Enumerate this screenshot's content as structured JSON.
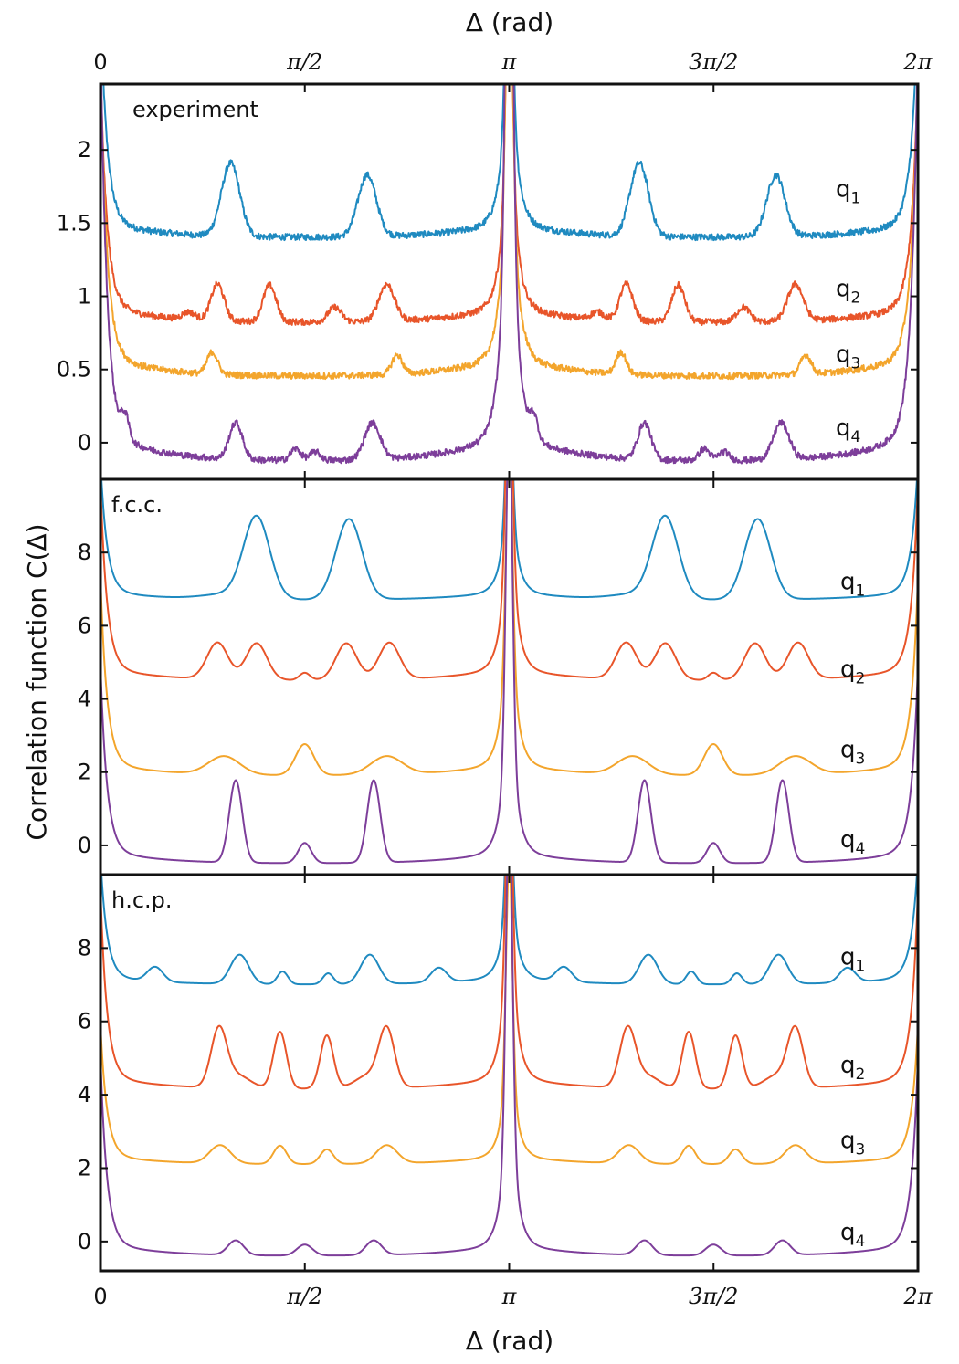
{
  "chart_data": {
    "type": "line",
    "ylabel": "Correlation function C(Δ)",
    "xlabel": "Δ (rad)",
    "xlabel_top": "Δ (rad)",
    "x_ticks": [
      0,
      1.5708,
      3.1416,
      4.7124,
      6.2832
    ],
    "x_tick_labels": [
      "0",
      "π/2",
      "π",
      "3π/2",
      "2π"
    ],
    "xlim": [
      0,
      6.2832
    ],
    "grid": false,
    "colors": {
      "q1": "#1f8ac0",
      "q2": "#e8552a",
      "q3": "#f3a52c",
      "q4": "#7d3e9a"
    },
    "panels": [
      {
        "label": "experiment",
        "ylim": [
          -0.25,
          2.45
        ],
        "y_ticks": [
          0,
          0.5,
          1,
          1.5,
          2
        ],
        "y_tick_labels": [
          "0",
          "0.5",
          "1",
          "1.5",
          "2"
        ],
        "noise": 0.022,
        "series": [
          {
            "name": "q1",
            "baseline": 1.4,
            "wall": 1.5,
            "center": 1.1,
            "peaks": [
              [
                1.0,
                0.5,
                0.07
              ],
              [
                2.05,
                0.42,
                0.07
              ]
            ]
          },
          {
            "name": "q2",
            "baseline": 0.82,
            "wall": 1.6,
            "center": 1.05,
            "peaks": [
              [
                0.9,
                0.25,
                0.05
              ],
              [
                1.3,
                0.25,
                0.05
              ],
              [
                1.8,
                0.1,
                0.05
              ],
              [
                2.2,
                0.25,
                0.06
              ],
              [
                0.68,
                0.05,
                0.05
              ]
            ]
          },
          {
            "name": "q3",
            "baseline": 0.45,
            "wall": 2.0,
            "center": 1.4,
            "peaks": [
              [
                0.86,
                0.15,
                0.04
              ],
              [
                2.28,
                0.13,
                0.04
              ]
            ]
          },
          {
            "name": "q4",
            "baseline": -0.13,
            "wall": 2.7,
            "center": 2.8,
            "peaks": [
              [
                1.04,
                0.25,
                0.05
              ],
              [
                2.09,
                0.25,
                0.06
              ],
              [
                0.19,
                0.15,
                0.03
              ],
              [
                1.5,
                0.08,
                0.04
              ],
              [
                1.65,
                0.06,
                0.04
              ]
            ]
          }
        ],
        "series_labels": [
          {
            "name": "q1",
            "main": "q",
            "sub": "1",
            "y": 1.68
          },
          {
            "name": "q2",
            "main": "q",
            "sub": "2",
            "y": 1.0
          },
          {
            "name": "q3",
            "main": "q",
            "sub": "3",
            "y": 0.55
          },
          {
            "name": "q4",
            "main": "q",
            "sub": "4",
            "y": 0.05
          }
        ]
      },
      {
        "label": "f.c.c.",
        "ylim": [
          -0.8,
          10
        ],
        "y_ticks": [
          0,
          2,
          4,
          6,
          8
        ],
        "y_tick_labels": [
          "0",
          "2",
          "4",
          "6",
          "8"
        ],
        "noise": 0,
        "series": [
          {
            "name": "q1",
            "baseline": 6.7,
            "wall": 3.5,
            "center": 3.0,
            "peaks": [
              [
                1.2,
                2.2,
                0.1
              ],
              [
                1.91,
                2.2,
                0.1
              ],
              [
                1.0,
                0.15,
                0.2
              ]
            ]
          },
          {
            "name": "q2",
            "baseline": 4.5,
            "wall": 5.0,
            "center": 5.0,
            "peaks": [
              [
                0.9,
                1.0,
                0.08
              ],
              [
                1.2,
                1.0,
                0.08
              ],
              [
                1.89,
                1.0,
                0.08
              ],
              [
                2.22,
                1.0,
                0.08
              ],
              [
                1.57,
                0.2,
                0.04
              ]
            ]
          },
          {
            "name": "q3",
            "baseline": 1.9,
            "wall": 5.0,
            "center": 5.0,
            "peaks": [
              [
                0.95,
                0.5,
                0.12
              ],
              [
                2.2,
                0.5,
                0.12
              ],
              [
                1.57,
                0.85,
                0.07
              ]
            ]
          },
          {
            "name": "q4",
            "baseline": -0.5,
            "wall": 5.0,
            "center": 8.0,
            "peaks": [
              [
                1.04,
                2.25,
                0.05
              ],
              [
                2.1,
                2.25,
                0.05
              ],
              [
                1.57,
                0.55,
                0.05
              ]
            ]
          }
        ],
        "series_labels": [
          {
            "name": "q1",
            "main": "q",
            "sub": "1",
            "y": 7.0
          },
          {
            "name": "q2",
            "main": "q",
            "sub": "2",
            "y": 4.6
          },
          {
            "name": "q3",
            "main": "q",
            "sub": "3",
            "y": 2.4
          },
          {
            "name": "q4",
            "main": "q",
            "sub": "4",
            "y": -0.05
          }
        ]
      },
      {
        "label": "h.c.p.",
        "ylim": [
          -0.8,
          10
        ],
        "y_ticks": [
          0,
          2,
          4,
          6,
          8
        ],
        "y_tick_labels": [
          "0",
          "2",
          "4",
          "6",
          "8"
        ],
        "noise": 0,
        "series": [
          {
            "name": "q1",
            "baseline": 7.0,
            "wall": 3.2,
            "center": 3.0,
            "peaks": [
              [
                0.42,
                0.4,
                0.06
              ],
              [
                1.07,
                0.8,
                0.07
              ],
              [
                2.07,
                0.8,
                0.07
              ],
              [
                1.4,
                0.35,
                0.04
              ],
              [
                1.75,
                0.3,
                0.04
              ],
              [
                2.6,
                0.4,
                0.06
              ]
            ]
          },
          {
            "name": "q2",
            "baseline": 4.15,
            "wall": 5.0,
            "center": 5.0,
            "peaks": [
              [
                0.91,
                1.55,
                0.06
              ],
              [
                1.38,
                1.55,
                0.05
              ],
              [
                1.74,
                1.45,
                0.05
              ],
              [
                2.2,
                1.55,
                0.06
              ],
              [
                1.05,
                0.35,
                0.1
              ],
              [
                2.06,
                0.35,
                0.1
              ]
            ]
          },
          {
            "name": "q3",
            "baseline": 2.1,
            "wall": 3.5,
            "center": 5.0,
            "peaks": [
              [
                0.92,
                0.5,
                0.08
              ],
              [
                1.38,
                0.5,
                0.05
              ],
              [
                1.74,
                0.4,
                0.05
              ],
              [
                2.2,
                0.5,
                0.08
              ]
            ]
          },
          {
            "name": "q4",
            "baseline": -0.4,
            "wall": 5.0,
            "center": 8.0,
            "peaks": [
              [
                1.04,
                0.4,
                0.06
              ],
              [
                1.57,
                0.3,
                0.06
              ],
              [
                2.1,
                0.4,
                0.06
              ]
            ]
          }
        ],
        "series_labels": [
          {
            "name": "q1",
            "main": "q",
            "sub": "1",
            "y": 7.55
          },
          {
            "name": "q2",
            "main": "q",
            "sub": "2",
            "y": 4.6
          },
          {
            "name": "q3",
            "main": "q",
            "sub": "3",
            "y": 2.55
          },
          {
            "name": "q4",
            "main": "q",
            "sub": "4",
            "y": 0.05
          }
        ]
      }
    ]
  }
}
